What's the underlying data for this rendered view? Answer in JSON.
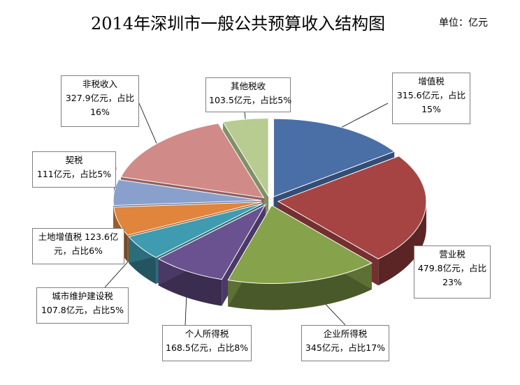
{
  "title": "2014年深圳市一般公共预算收入结构图",
  "unit": "单位：亿元",
  "chart_data": {
    "type": "pie",
    "title": "2014年深圳市一般公共预算收入结构图",
    "unit": "亿元",
    "legend": "none",
    "slices": [
      {
        "name": "增值税",
        "value": 315.6,
        "percent": 15,
        "color": "#4a6ea6",
        "label_lines": [
          "增值税",
          "315.6亿元，占比",
          "15%"
        ]
      },
      {
        "name": "营业税",
        "value": 479.8,
        "percent": 23,
        "color": "#a64444",
        "label_lines": [
          "营业税",
          "479.8亿元，占比",
          "23%"
        ]
      },
      {
        "name": "企业所得税",
        "value": 345,
        "percent": 17,
        "color": "#86a24a",
        "label_lines": [
          "企业所得税",
          "345亿元，占比17%"
        ]
      },
      {
        "name": "个人所得税",
        "value": 168.5,
        "percent": 8,
        "color": "#6a5290",
        "label_lines": [
          "个人所得税",
          "168.5亿元，占比8%"
        ]
      },
      {
        "name": "城市维护建设税",
        "value": 107.8,
        "percent": 5,
        "color": "#3f9bb0",
        "label_lines": [
          "城市维护建设税",
          "107.8亿元，占比5%"
        ]
      },
      {
        "name": "土地增值税",
        "value": 123.6,
        "percent": 6,
        "color": "#e0853b",
        "label_lines": [
          "土地增值税  123.6亿",
          "元，占比6%"
        ]
      },
      {
        "name": "契税",
        "value": 111,
        "percent": 5,
        "color": "#8aa0cc",
        "label_lines": [
          "契税",
          "111亿元，占比5%"
        ]
      },
      {
        "name": "非税收入",
        "value": 327.9,
        "percent": 16,
        "color": "#d08a88",
        "label_lines": [
          "非税收入",
          "327.9亿元，占比",
          "16%"
        ]
      },
      {
        "name": "其他税收",
        "value": 103.5,
        "percent": 5,
        "color": "#b8cc92",
        "label_lines": [
          "其他税收",
          "103.5亿元，占比5%"
        ]
      }
    ]
  }
}
